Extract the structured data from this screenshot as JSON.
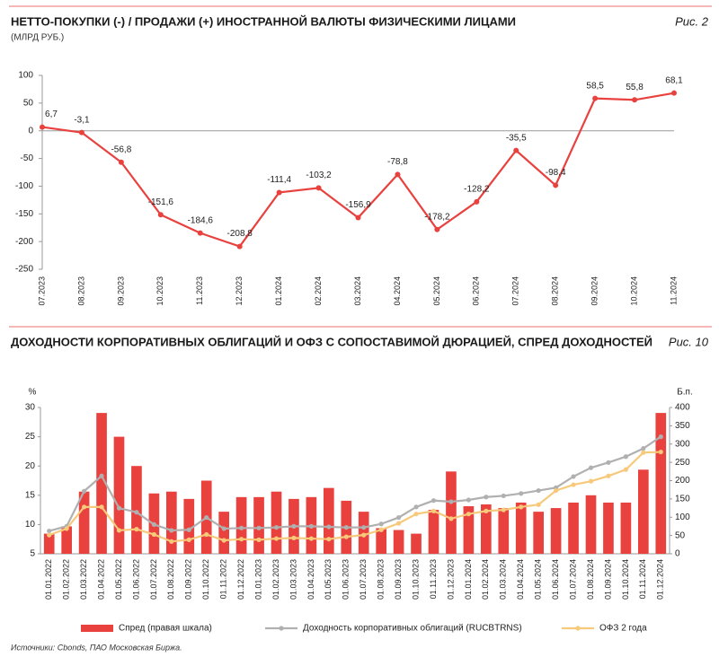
{
  "chart_data": [
    {
      "type": "line",
      "title": "НЕТТО-ПОКУПКИ (-) / ПРОДАЖИ (+) ИНОСТРАННОЙ ВАЛЮТЫ ФИЗИЧЕСКИМИ ЛИЦАМИ",
      "subtitle": "(МЛРД РУБ.)",
      "figure_label": "Рис. 2",
      "categories": [
        "07.2023",
        "08.2023",
        "09.2023",
        "10.2023",
        "11.2023",
        "12.2023",
        "01.2024",
        "02.2024",
        "03.2024",
        "04.2024",
        "05.2024",
        "06.2024",
        "07.2024",
        "08.2024",
        "09.2024",
        "10.2024",
        "11.2024"
      ],
      "values": [
        6.7,
        -3.1,
        -56.8,
        -151.6,
        -184.6,
        -208.8,
        -111.4,
        -103.2,
        -156.9,
        -78.8,
        -178.2,
        -128.2,
        -35.5,
        -98.4,
        58.5,
        55.8,
        68.1
      ],
      "value_labels": [
        "6,7",
        "-3,1",
        "-56,8",
        "-151,6",
        "-184,6",
        "-208,8",
        "-111,4",
        "-103,2",
        "-156,9",
        "-78,8",
        "-178,2",
        "-128,2",
        "-35,5",
        "-98,4",
        "58,5",
        "55,8",
        "68,1"
      ],
      "color": "#e8413e",
      "ylim": [
        -250,
        100
      ],
      "yticks": [
        -250,
        -200,
        -150,
        -100,
        -50,
        0,
        50,
        100
      ],
      "grid": false
    },
    {
      "type": "combo",
      "title": "ДОХОДНОСТИ КОРПОРАТИВНЫХ ОБЛИГАЦИЙ И ОФЗ С СОПОСТАВИМОЙ ДЮРАЦИЕЙ, СПРЕД ДОХОДНОСТЕЙ",
      "figure_label": "Рис. 10",
      "y_label": "%",
      "y2_label": "Б.п.",
      "categories": [
        "01.01.2022",
        "01.02.2022",
        "01.03.2022",
        "01.04.2022",
        "01.05.2022",
        "01.06.2022",
        "01.07.2022",
        "01.08.2022",
        "01.09.2022",
        "01.10.2022",
        "01.11.2022",
        "01.12.2022",
        "01.01.2023",
        "01.02.2023",
        "01.03.2023",
        "01.04.2023",
        "01.05.2023",
        "01.06.2023",
        "01.07.2023",
        "01.08.2023",
        "01.09.2023",
        "01.10.2023",
        "01.11.2023",
        "01.12.2023",
        "01.01.2024",
        "01.02.2024",
        "01.03.2024",
        "01.04.2024",
        "01.05.2024",
        "01.06.2024",
        "01.07.2024",
        "01.08.2024",
        "01.09.2024",
        "01.10.2024",
        "01.11.2024",
        "01.12.2024"
      ],
      "series": [
        {
          "name": "Спред (правая шкала)",
          "type": "bar",
          "axis": "y2",
          "color": "#e8413e",
          "values": [
            55,
            75,
            170,
            385,
            320,
            240,
            165,
            170,
            150,
            200,
            115,
            155,
            155,
            170,
            150,
            155,
            180,
            145,
            115,
            70,
            65,
            55,
            120,
            225,
            130,
            135,
            125,
            140,
            115,
            125,
            140,
            160,
            140,
            140,
            230,
            385
          ]
        },
        {
          "name": "Доходность корпоративных облигаций (RUCBTRNS)",
          "type": "line",
          "color": "#b0b0b0",
          "values": [
            8.9,
            9.7,
            15.7,
            18.3,
            12.8,
            12.1,
            10.0,
            9.0,
            9.1,
            11.2,
            9.3,
            9.4,
            9.4,
            9.5,
            9.7,
            9.7,
            9.6,
            9.5,
            9.5,
            10.1,
            11.2,
            13.0,
            14.1,
            13.9,
            14.2,
            14.7,
            14.9,
            15.3,
            15.8,
            16.3,
            18.2,
            19.7,
            20.6,
            21.6,
            23.0,
            25.0
          ]
        },
        {
          "name": "ОФЗ 2 года",
          "type": "line",
          "color": "#f7c97b",
          "values": [
            8.2,
            9.3,
            13.0,
            13.0,
            9.0,
            9.2,
            8.3,
            7.1,
            7.4,
            8.3,
            7.3,
            7.5,
            7.4,
            7.6,
            7.7,
            7.6,
            7.5,
            7.9,
            8.2,
            9.1,
            10.2,
            11.8,
            12.3,
            11.0,
            11.8,
            12.3,
            12.5,
            13.0,
            13.4,
            15.8,
            16.8,
            17.4,
            18.3,
            19.4,
            22.3,
            22.4
          ]
        }
      ],
      "ylim": [
        5,
        30
      ],
      "yticks": [
        5,
        10,
        15,
        20,
        25,
        30
      ],
      "y2lim": [
        0,
        400
      ],
      "y2ticks": [
        0,
        50,
        100,
        150,
        200,
        250,
        300,
        350,
        400
      ],
      "grid": false,
      "legend": "bottom"
    }
  ],
  "source": "Источники: Cbonds, ПАО Московская Биржа."
}
